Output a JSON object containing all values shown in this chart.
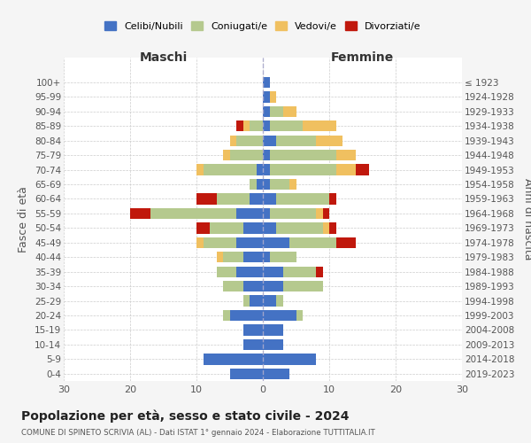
{
  "age_groups": [
    "0-4",
    "5-9",
    "10-14",
    "15-19",
    "20-24",
    "25-29",
    "30-34",
    "35-39",
    "40-44",
    "45-49",
    "50-54",
    "55-59",
    "60-64",
    "65-69",
    "70-74",
    "75-79",
    "80-84",
    "85-89",
    "90-94",
    "95-99",
    "100+"
  ],
  "birth_years": [
    "2019-2023",
    "2014-2018",
    "2009-2013",
    "2004-2008",
    "1999-2003",
    "1994-1998",
    "1989-1993",
    "1984-1988",
    "1979-1983",
    "1974-1978",
    "1969-1973",
    "1964-1968",
    "1959-1963",
    "1954-1958",
    "1949-1953",
    "1944-1948",
    "1939-1943",
    "1934-1938",
    "1929-1933",
    "1924-1928",
    "≤ 1923"
  ],
  "colors": {
    "celibi": "#4472c4",
    "coniugati": "#b5c98e",
    "vedovi": "#f0c060",
    "divorziati": "#c0180c"
  },
  "males": {
    "celibi": [
      5,
      9,
      3,
      3,
      5,
      2,
      3,
      4,
      3,
      4,
      3,
      4,
      2,
      1,
      1,
      0,
      0,
      0,
      0,
      0,
      0
    ],
    "coniugati": [
      0,
      0,
      0,
      0,
      1,
      1,
      3,
      3,
      3,
      5,
      5,
      13,
      5,
      1,
      8,
      5,
      4,
      2,
      0,
      0,
      0
    ],
    "vedovi": [
      0,
      0,
      0,
      0,
      0,
      0,
      0,
      0,
      1,
      1,
      0,
      0,
      0,
      0,
      1,
      1,
      1,
      1,
      0,
      0,
      0
    ],
    "divorziati": [
      0,
      0,
      0,
      0,
      0,
      0,
      0,
      0,
      0,
      0,
      2,
      3,
      3,
      0,
      0,
      0,
      0,
      1,
      0,
      0,
      0
    ]
  },
  "females": {
    "celibi": [
      4,
      8,
      3,
      3,
      5,
      2,
      3,
      3,
      1,
      4,
      2,
      1,
      2,
      1,
      1,
      1,
      2,
      1,
      1,
      1,
      1
    ],
    "coniugati": [
      0,
      0,
      0,
      0,
      1,
      1,
      6,
      5,
      4,
      7,
      7,
      7,
      8,
      3,
      10,
      10,
      6,
      5,
      2,
      0,
      0
    ],
    "vedovi": [
      0,
      0,
      0,
      0,
      0,
      0,
      0,
      0,
      0,
      0,
      1,
      1,
      0,
      1,
      3,
      3,
      4,
      5,
      2,
      1,
      0
    ],
    "divorziati": [
      0,
      0,
      0,
      0,
      0,
      0,
      0,
      1,
      0,
      3,
      1,
      1,
      1,
      0,
      2,
      0,
      0,
      0,
      0,
      0,
      0
    ]
  },
  "xlim": 30,
  "title_main": "Popolazione per età, sesso e stato civile - 2024",
  "title_sub": "COMUNE DI SPINETO SCRIVIA (AL) - Dati ISTAT 1° gennaio 2024 - Elaborazione TUTTITALIA.IT",
  "ylabel_left": "Fasce di età",
  "ylabel_right": "Anni di nascita",
  "label_maschi": "Maschi",
  "label_femmine": "Femmine",
  "legend_labels": [
    "Celibi/Nubili",
    "Coniugati/e",
    "Vedovi/e",
    "Divorziati/e"
  ],
  "background_color": "#f5f5f5",
  "plot_background": "#ffffff"
}
